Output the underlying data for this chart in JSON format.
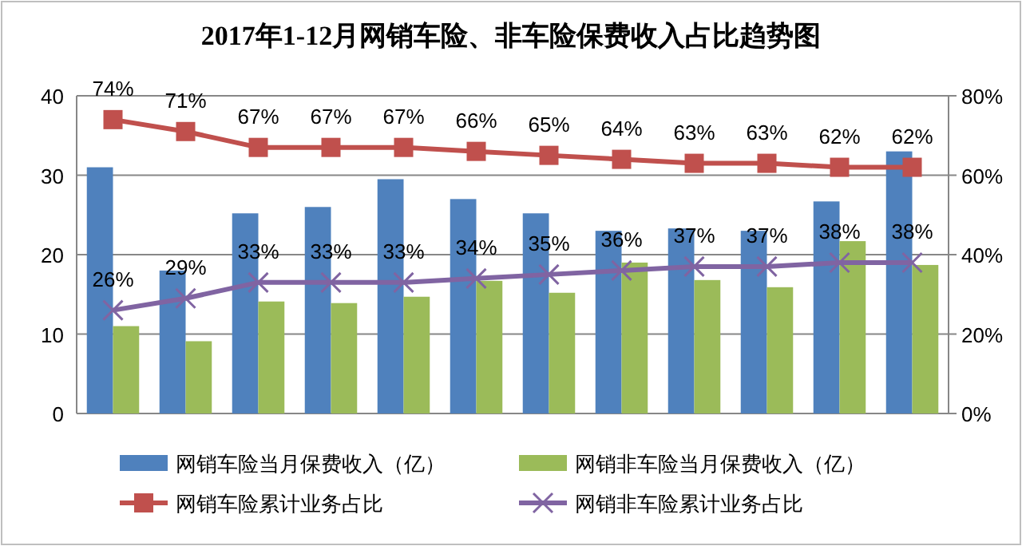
{
  "chart_data": {
    "type": "bar",
    "title": "2017年1-12月网销车险、非车险保费收入占比趋势图",
    "categories": [
      null,
      null,
      null,
      null,
      null,
      null,
      null,
      null,
      null,
      null,
      null,
      null
    ],
    "ylim": [
      0,
      40
    ],
    "yticks": [
      0,
      10,
      20,
      30,
      40
    ],
    "y2lim": [
      0,
      80
    ],
    "y2ticks": [
      {
        "value": 0,
        "label": "0%"
      },
      {
        "value": 20,
        "label": "20%"
      },
      {
        "value": 40,
        "label": "40%"
      },
      {
        "value": 60,
        "label": "60%"
      },
      {
        "value": 80,
        "label": "80%"
      }
    ],
    "grid": "y",
    "legend": "bottom",
    "series": [
      {
        "name": "网销车险当月保费收入（亿）",
        "color": "#4f81bd",
        "values": [
          31,
          18,
          25.2,
          26,
          29.5,
          27,
          25.2,
          23,
          23.3,
          23,
          26.7,
          33
        ]
      },
      {
        "name": "网销非车险当月保费收入（亿）",
        "color": "#9bbb59",
        "values": [
          11,
          9.1,
          14.1,
          13.9,
          14.7,
          16.7,
          15.2,
          19,
          16.8,
          15.9,
          21.7,
          18.7
        ]
      },
      {
        "name": "网销车险累计业务占比",
        "type": "line",
        "axis": "y2",
        "marker": "square",
        "color": "#c0504d",
        "values": [
          74,
          71,
          67,
          67,
          67,
          66,
          65,
          64,
          63,
          63,
          62,
          62
        ],
        "value_labels": [
          "74%",
          "71%",
          "67%",
          "67%",
          "67%",
          "66%",
          "65%",
          "64%",
          "63%",
          "63%",
          "62%",
          "62%"
        ]
      },
      {
        "name": "网销非车险累计业务占比",
        "type": "line",
        "axis": "y2",
        "marker": "cross",
        "color": "#8064a2",
        "values": [
          26,
          29,
          33,
          33,
          33,
          34,
          35,
          36,
          37,
          37,
          38,
          38
        ],
        "value_labels": [
          "26%",
          "29%",
          "33%",
          "33%",
          "33%",
          "34%",
          "35%",
          "36%",
          "37%",
          "37%",
          "38%",
          "38%"
        ]
      }
    ]
  }
}
